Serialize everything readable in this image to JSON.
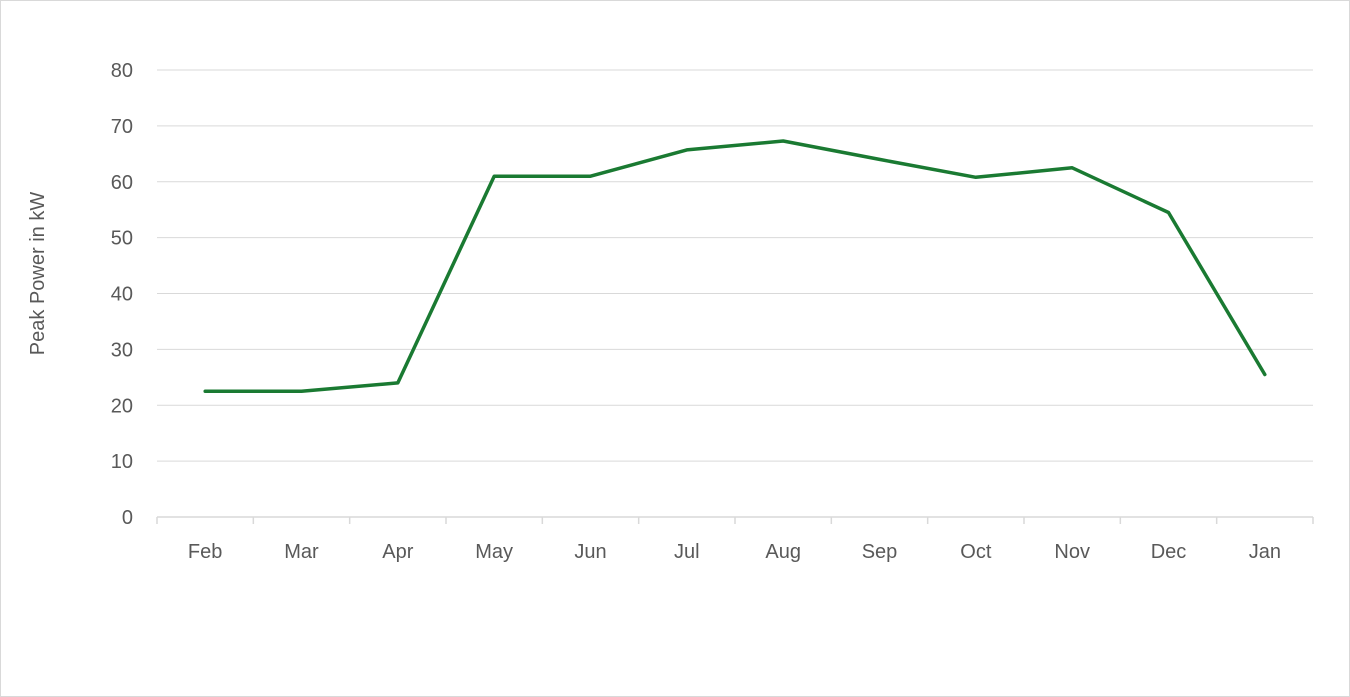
{
  "chart_data": {
    "type": "line",
    "title": "",
    "xlabel": "",
    "ylabel": "Peak Power in kW",
    "categories": [
      "Feb",
      "Mar",
      "Apr",
      "May",
      "Jun",
      "Jul",
      "Aug",
      "Sep",
      "Oct",
      "Nov",
      "Dec",
      "Jan"
    ],
    "series": [
      {
        "values": [
          22.5,
          22.5,
          24,
          61,
          61,
          65.7,
          67.3,
          64,
          60.8,
          62.5,
          54.5,
          25.5
        ],
        "color": "#1a7a32"
      }
    ],
    "ylim": [
      0,
      80
    ],
    "yticks": [
      0,
      10,
      20,
      30,
      40,
      50,
      60,
      70,
      80
    ],
    "grid": true,
    "legend": "none"
  }
}
